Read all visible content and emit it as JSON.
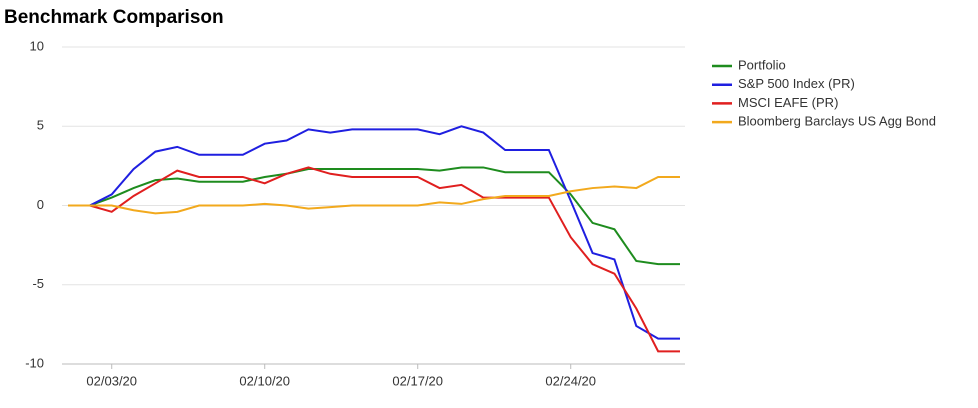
{
  "chart_data": {
    "type": "line",
    "title": "Benchmark Comparison",
    "categories": [
      null,
      null,
      "02/03/20",
      null,
      null,
      null,
      null,
      null,
      null,
      "02/10/20",
      null,
      null,
      null,
      null,
      null,
      null,
      "02/17/20",
      null,
      null,
      null,
      null,
      null,
      null,
      "02/24/20",
      null,
      null,
      null,
      null,
      null
    ],
    "series": [
      {
        "name": "Portfolio",
        "color": "#1e8c1e",
        "values": [
          0,
          0,
          0.5,
          1.1,
          1.6,
          1.7,
          1.5,
          1.5,
          1.5,
          1.8,
          2.0,
          2.3,
          2.3,
          2.3,
          2.3,
          2.3,
          2.3,
          2.2,
          2.4,
          2.4,
          2.1,
          2.1,
          2.1,
          0.7,
          -1.1,
          -1.5,
          -3.5,
          -3.7,
          -3.7
        ]
      },
      {
        "name": "S&P 500 Index (PR)",
        "color": "#1f1fe0",
        "values": [
          0,
          0,
          0.7,
          2.3,
          3.4,
          3.7,
          3.2,
          3.2,
          3.2,
          3.9,
          4.1,
          4.8,
          4.6,
          4.8,
          4.8,
          4.8,
          4.8,
          4.5,
          5.0,
          4.6,
          3.5,
          3.5,
          3.5,
          0.3,
          -3.0,
          -3.4,
          -7.6,
          -8.4,
          -8.4
        ]
      },
      {
        "name": "MSCI EAFE (PR)",
        "color": "#e01f1f",
        "values": [
          0,
          0,
          -0.4,
          0.6,
          1.4,
          2.2,
          1.8,
          1.8,
          1.8,
          1.4,
          2.0,
          2.4,
          2.0,
          1.8,
          1.8,
          1.8,
          1.8,
          1.1,
          1.3,
          0.5,
          0.5,
          0.5,
          0.5,
          -2.0,
          -3.7,
          -4.3,
          -6.5,
          -9.2,
          -9.2
        ]
      },
      {
        "name": "Bloomberg Barclays US Agg Bond",
        "color": "#f2a91d",
        "values": [
          0,
          0,
          0,
          -0.3,
          -0.5,
          -0.4,
          0,
          0,
          0,
          0.1,
          0,
          -0.2,
          -0.1,
          0,
          0,
          0,
          0,
          0.2,
          0.1,
          0.4,
          0.6,
          0.6,
          0.6,
          0.9,
          1.1,
          1.2,
          1.1,
          1.8,
          1.8
        ]
      }
    ],
    "ylim": [
      -10,
      10
    ],
    "yticks": [
      -10,
      -5,
      0,
      5,
      10
    ],
    "grid": true,
    "legend": "right"
  }
}
